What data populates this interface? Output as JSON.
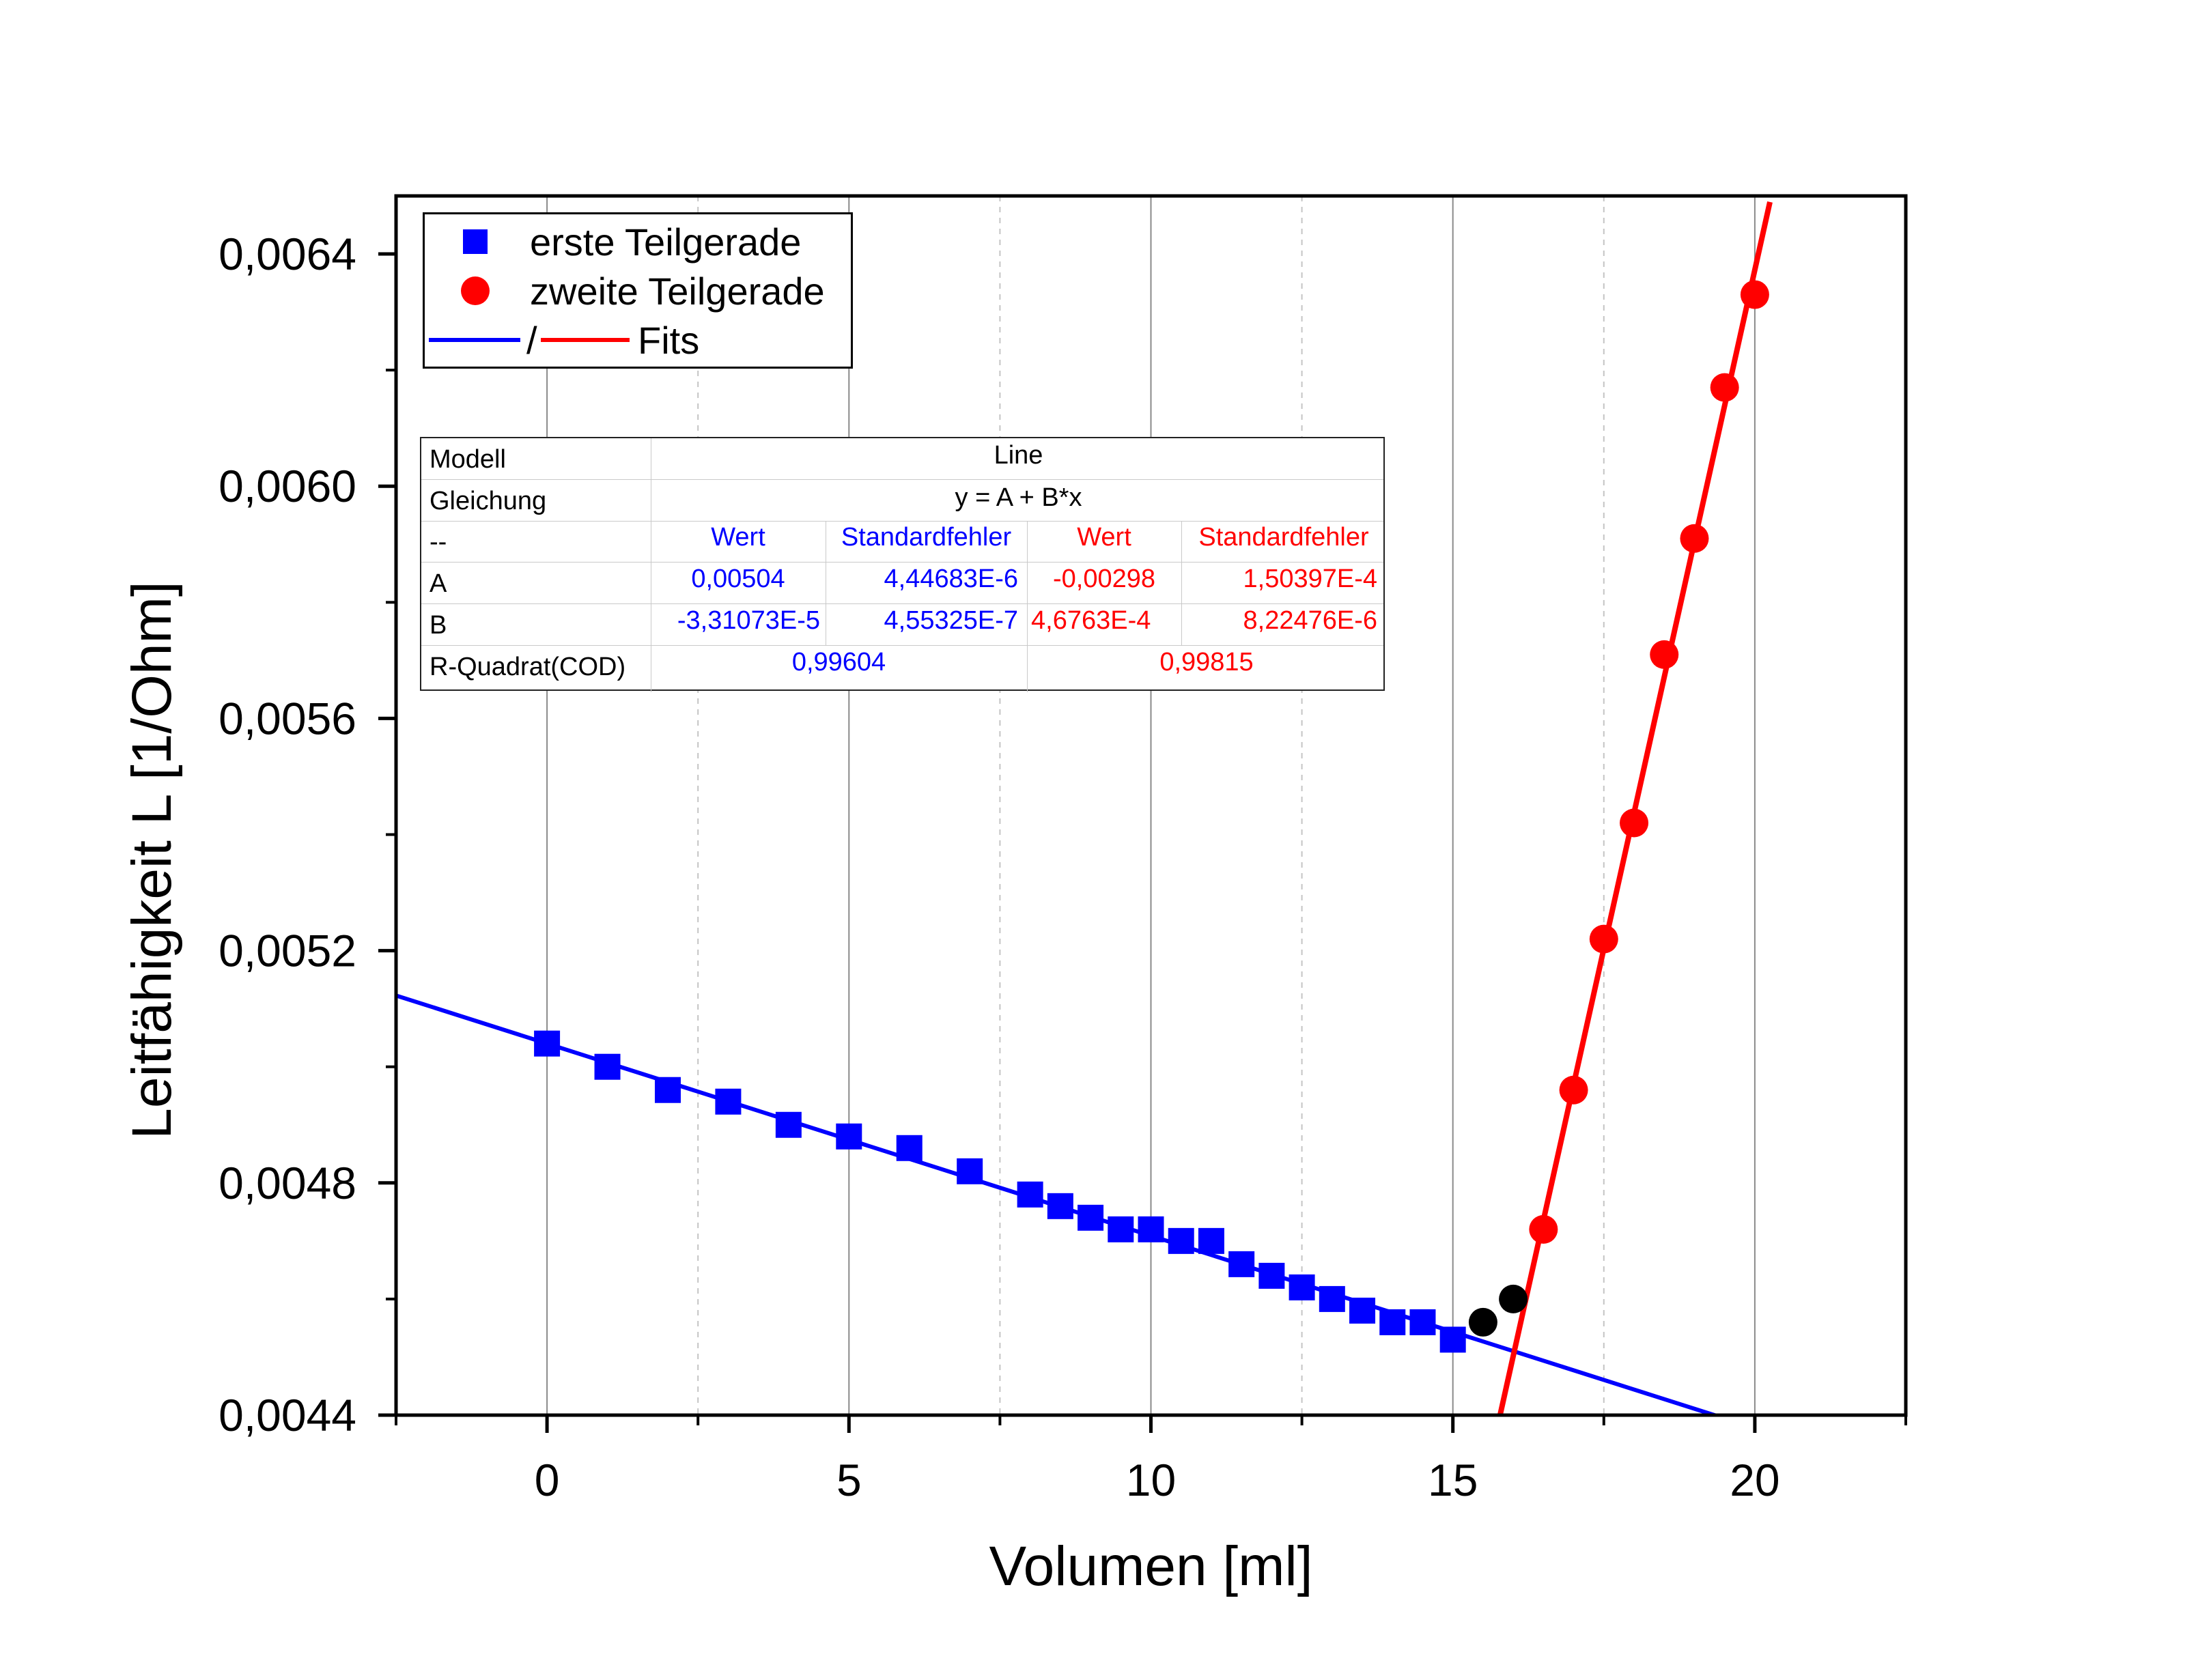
{
  "chart_data": {
    "type": "scatter",
    "xlabel": "Volumen [ml]",
    "ylabel": "Leitfähigkeit L [1/Ohm]",
    "xlim": [
      -2.5,
      22.5
    ],
    "ylim": [
      0.0044,
      0.0065
    ],
    "xticks": [
      0,
      5,
      10,
      15,
      20
    ],
    "xtick_labels": [
      "0",
      "5",
      "10",
      "15",
      "20"
    ],
    "yticks": [
      0.0044,
      0.0048,
      0.0052,
      0.0056,
      0.006,
      0.0064
    ],
    "ytick_labels": [
      "0,0044",
      "0,0048",
      "0,0052",
      "0,0056",
      "0,0060",
      "0,0064"
    ],
    "grid": "vertical",
    "legend_position": "top-left",
    "colors": {
      "blue": "#0000ff",
      "red": "#ff0000",
      "black": "#000000"
    },
    "series": [
      {
        "name": "erste Teilgerade",
        "marker": "square",
        "color": "#0000ff",
        "x": [
          0,
          1,
          2,
          3,
          4,
          5,
          6,
          7,
          8,
          8.5,
          9,
          9.5,
          10,
          10.5,
          11,
          11.5,
          12,
          12.5,
          13,
          13.5,
          14,
          14.5,
          15
        ],
        "y": [
          0.00504,
          0.005,
          0.00496,
          0.00494,
          0.0049,
          0.00488,
          0.00486,
          0.00482,
          0.00478,
          0.00476,
          0.00474,
          0.00472,
          0.00472,
          0.0047,
          0.0047,
          0.00466,
          0.00464,
          0.00462,
          0.0046,
          0.00458,
          0.00456,
          0.00456,
          0.00453
        ]
      },
      {
        "name": "zweite Teilgerade",
        "marker": "circle",
        "color": "#ff0000",
        "x": [
          16.5,
          17,
          17.5,
          18,
          18.5,
          19,
          19.5,
          20
        ],
        "y": [
          0.00472,
          0.00496,
          0.00522,
          0.00542,
          0.00571,
          0.00591,
          0.00617,
          0.00633
        ]
      },
      {
        "marker": "circle",
        "color": "#000000",
        "x": [
          15.5,
          16
        ],
        "y": [
          0.00456,
          0.0046
        ]
      }
    ],
    "fits": [
      {
        "color": "#0000ff",
        "intercept": 0.00504,
        "slope": -3.31073e-05,
        "x_range": [
          -2.5,
          19.35
        ]
      },
      {
        "color": "#ff0000",
        "intercept": -0.00298,
        "slope": 0.00046763,
        "x_range": [
          15.75,
          20.25
        ]
      }
    ],
    "legend": {
      "entries": [
        "erste Teilgerade",
        "zweite Teilgerade"
      ],
      "fit_separator": "/",
      "fit_label": "Fits"
    },
    "fit_table": {
      "rows": [
        {
          "label": "Modell",
          "span": "Line"
        },
        {
          "label": "Gleichung",
          "span": "y = A + B*x"
        },
        {
          "label": "--",
          "cells": [
            "Wert",
            "Standardfehler",
            "Wert",
            "Standardfehler"
          ]
        },
        {
          "label": "A",
          "cells": [
            "0,00504",
            "4,44683E-6",
            "-0,00298",
            "1,50397E-4"
          ]
        },
        {
          "label": "B",
          "cells": [
            "-3,31073E-5",
            "4,55325E-7",
            "4,6763E-4",
            "8,22476E-6"
          ]
        },
        {
          "label": "R-Quadrat(COD)",
          "pair": [
            "0,99604",
            "0,99815"
          ]
        }
      ]
    }
  }
}
